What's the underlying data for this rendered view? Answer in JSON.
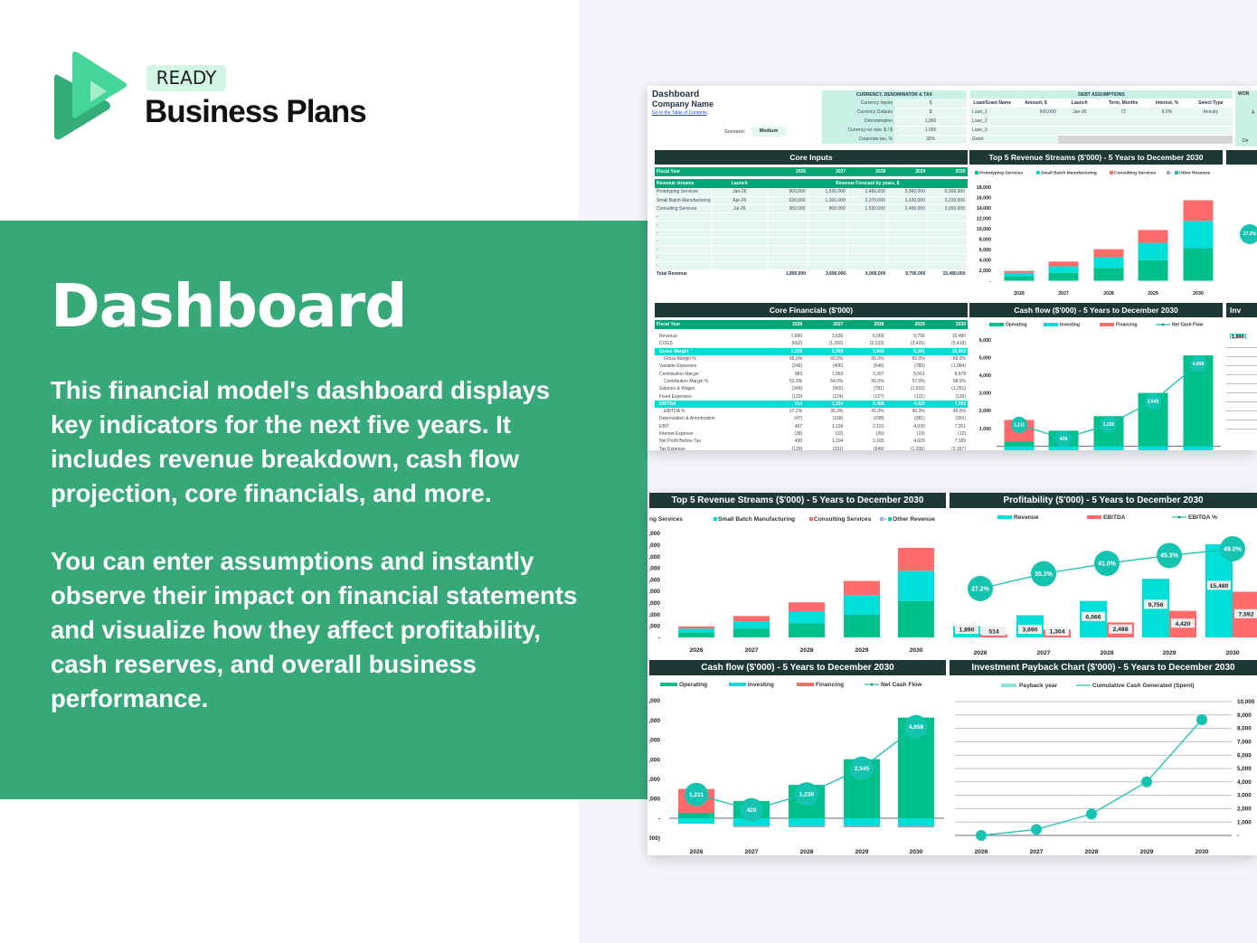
{
  "brand": {
    "badge": "READY",
    "name": "Business Plans"
  },
  "hero": {
    "title": "Dashboard",
    "paragraph1": "This financial model's dashboard displays key indicators for the next five years. It includes revenue breakdown, cash flow projection, core financials, and more.",
    "paragraph2": "You can enter assumptions and instantly observe their impact on financial statements and visualize how they affect profitability, cash reserves, and overall business performance."
  },
  "sheet": {
    "title": "Dashboard",
    "company": "Company Name",
    "toc_link": "Go to the Table of Contents",
    "scenario_label": "Scenario:",
    "scenario_value": "Medium",
    "currency": {
      "title": "CURRENCY, DENOMINATOR & TAX",
      "rows": [
        [
          "Currency Inputs",
          "$"
        ],
        [
          "Currency Outputs",
          "$"
        ],
        [
          "Denomination",
          "1,000"
        ],
        [
          "Currency ex rate, $ / $",
          "1.000"
        ],
        [
          "Corporate tax, %",
          "30%"
        ]
      ]
    },
    "debt": {
      "title": "DEBT ASSUMPTIONS",
      "headers": [
        "Loan/Grant Name",
        "Amount, $",
        "Launch",
        "Term, Months",
        "Interest, %",
        "Select Type"
      ],
      "rows": [
        [
          "Loan_1",
          "500,000",
          "Jan-26",
          "72",
          "8.0%",
          "Annuity"
        ],
        [
          "Loan_2",
          "",
          "",
          "",
          "",
          ""
        ],
        [
          "Loan_3",
          "",
          "",
          "",
          "",
          ""
        ],
        [
          "Grant",
          "",
          "",
          "",
          "",
          ""
        ]
      ]
    },
    "cut_panel": {
      "title": "WOR",
      "line1": "A",
      "line2": "De",
      "bubble": "27.2%",
      "label": "1,890",
      "year": "2026",
      "title2": "Inv"
    },
    "core_inputs": {
      "title": "Core Inputs",
      "fiscal_label": "Fiscal Year",
      "years": [
        "2026",
        "2027",
        "2028",
        "2029",
        "2030"
      ],
      "streams_header": "Revenue streams",
      "launch_header": "Launch",
      "forecast_header": "Revenue Forecast by years, $",
      "rows": [
        [
          "Prototyping Services",
          "Jan-26",
          "900,000",
          "1,530,000",
          "2,466,000",
          "3,960,000",
          "6,300,000"
        ],
        [
          "Small Batch Manufacturing",
          "Apr-26",
          "630,000",
          "1,260,000",
          "2,070,000",
          "3,330,000",
          "5,220,000"
        ],
        [
          "Consulting Services",
          "Jul-26",
          "360,000",
          "900,000",
          "1,530,000",
          "2,466,000",
          "3,960,000"
        ],
        [
          "-",
          "",
          "",
          "",
          "",
          "",
          ""
        ],
        [
          "-",
          "",
          "",
          "",
          "",
          "",
          ""
        ],
        [
          "-",
          "",
          "",
          "",
          "",
          "",
          ""
        ],
        [
          "-",
          "",
          "",
          "",
          "",
          "",
          ""
        ],
        [
          "-",
          "",
          "",
          "",
          "",
          "",
          ""
        ],
        [
          "-",
          "",
          "",
          "",
          "",
          "",
          ""
        ],
        [
          "-",
          "",
          "",
          "",
          "",
          "",
          ""
        ]
      ],
      "total_label": "Total Revenue",
      "totals": [
        "1,890,000",
        "3,690,000",
        "6,066,000",
        "9,756,000",
        "15,480,000"
      ]
    },
    "core_financials": {
      "title": "Core Financials ($'000)",
      "fiscal_label": "Fiscal Year",
      "years": [
        "2026",
        "2027",
        "2028",
        "2029",
        "2030"
      ],
      "rows": [
        {
          "label": "Revenue",
          "v": [
            "1,890",
            "3,690",
            "6,066",
            "9,756",
            "15,480"
          ]
        },
        {
          "label": "COGS",
          "v": [
            "(662)",
            "(1,292)",
            "(2,123)",
            "(3,415)",
            "(5,418)"
          ]
        },
        {
          "label": "Gross Margin",
          "v": [
            "1,229",
            "2,399",
            "3,943",
            "6,341",
            "10,062"
          ],
          "highlight": true
        },
        {
          "label": "Gross Margin %",
          "v": [
            "65.0%",
            "65.0%",
            "65.0%",
            "65.0%",
            "65.0%"
          ],
          "indent": true
        },
        {
          "label": "Variable Expenses",
          "v": [
            "(246)",
            "(406)",
            "(546)",
            "(780)",
            "(1,084)"
          ]
        },
        {
          "label": "Contribution Margin",
          "v": [
            "983",
            "1,993",
            "3,397",
            "5,561",
            "8,978"
          ]
        },
        {
          "label": "Contribution Margin %",
          "v": [
            "52.0%",
            "54.0%",
            "56.0%",
            "57.0%",
            "58.0%"
          ],
          "indent": true
        },
        {
          "label": "Salaries & Wages",
          "v": [
            "(349)",
            "(565)",
            "(781)",
            "(1,010)",
            "(1,251)"
          ]
        },
        {
          "label": "Fixed Expenses",
          "v": [
            "(120)",
            "(124)",
            "(127)",
            "(131)",
            "(135)"
          ]
        },
        {
          "label": "EBITDA",
          "v": [
            "514",
            "1,304",
            "2,488",
            "4,420",
            "7,592"
          ],
          "highlight": true
        },
        {
          "label": "EBITDA %",
          "v": [
            "27.2%",
            "35.3%",
            "41.0%",
            "45.3%",
            "49.0%"
          ],
          "indent": true
        },
        {
          "label": "Depreciation & Amortization",
          "v": [
            "(47)",
            "(168)",
            "(298)",
            "(381)",
            "(391)"
          ]
        },
        {
          "label": "EBIT",
          "v": [
            "467",
            "1,136",
            "2,191",
            "4,039",
            "7,201"
          ]
        },
        {
          "label": "Interest Expense",
          "v": [
            "(38)",
            "(32)",
            "(26)",
            "(19)",
            "(12)"
          ]
        },
        {
          "label": "Net Profit Before Tax",
          "v": [
            "430",
            "1,104",
            "2,165",
            "4,020",
            "7,189"
          ]
        },
        {
          "label": "Tax Expense",
          "v": [
            "(129)",
            "(331)",
            "(649)",
            "(1,206)",
            "(2,157)"
          ]
        }
      ]
    }
  },
  "colors": {
    "green": "#00c08b",
    "cyan": "#00e0d8",
    "red": "#ff6b6b",
    "bubble": "#14c3b0",
    "header": "#1e3836",
    "band": "#37a978"
  },
  "chart_data": [
    {
      "id": "revenue",
      "type": "bar",
      "stacked": true,
      "title": "Top 5 Revenue Streams ($'000) - 5 Years to December 2030",
      "categories": [
        "2026",
        "2027",
        "2028",
        "2029",
        "2030"
      ],
      "legend": [
        "Prototyping Services",
        "Small Batch Manufacturing",
        "Consulting Services",
        "-",
        "Other Revenue"
      ],
      "series": [
        {
          "name": "Prototyping Services",
          "values": [
            900,
            1530,
            2466,
            3960,
            6300
          ],
          "color": "#00c08b"
        },
        {
          "name": "Small Batch Manufacturing",
          "values": [
            630,
            1260,
            2070,
            3330,
            5220
          ],
          "color": "#00e0d8"
        },
        {
          "name": "Consulting Services",
          "values": [
            360,
            900,
            1530,
            2466,
            3960
          ],
          "color": "#ff6b6b"
        }
      ],
      "ylim": [
        0,
        18000
      ],
      "y_ticks": [
        "18,000",
        "16,000",
        "14,000",
        "12,000",
        "10,000",
        "8,000",
        "6,000",
        "4,000",
        "2,000",
        "-"
      ],
      "legend_position": "top"
    },
    {
      "id": "cashflow",
      "type": "bar",
      "stacked": true,
      "title": "Cash flow ($'000) - 5 Years to December 2030",
      "categories": [
        "2026",
        "2027",
        "2028",
        "2029",
        "2030"
      ],
      "legend": [
        "Operating",
        "Investing",
        "Financing",
        "Net Cash Flow"
      ],
      "series": [
        {
          "name": "Operating",
          "values": [
            280,
            880,
            1700,
            3010,
            5130
          ],
          "color": "#00c08b"
        },
        {
          "name": "Investing",
          "values": [
            -280,
            -420,
            -430,
            -430,
            -430
          ],
          "color": "#00e0d8"
        },
        {
          "name": "Financing",
          "values": [
            1210,
            -30,
            -30,
            -30,
            -40
          ],
          "color": "#ff6b6b"
        }
      ],
      "line": {
        "name": "Net Cash Flow",
        "values": [
          1211,
          429,
          1236,
          2545,
          4658
        ],
        "labels": [
          "1,211",
          "429",
          "1,236",
          "2,545",
          "4,658"
        ]
      },
      "ylim": [
        -1000,
        6000
      ],
      "y_ticks": [
        "6,000",
        "5,000",
        "4,000",
        "3,000",
        "2,000",
        "1,000",
        "-",
        "(1,000)"
      ],
      "legend_position": "top"
    },
    {
      "id": "profitability",
      "type": "bar",
      "title": "Profitability ($'000) - 5 Years to December 2030",
      "categories": [
        "2026",
        "2027",
        "2028",
        "2029",
        "2030"
      ],
      "legend": [
        "Revenue",
        "EBITDA",
        "EBITDA %"
      ],
      "series": [
        {
          "name": "Revenue",
          "values": [
            1890,
            3690,
            6066,
            9756,
            15480
          ],
          "labels": [
            "1,890",
            "3,690",
            "6,066",
            "9,756",
            "15,480"
          ],
          "color": "#00e0d8"
        },
        {
          "name": "EBITDA",
          "values": [
            514,
            1304,
            2488,
            4420,
            7592
          ],
          "labels": [
            "514",
            "1,304",
            "2,488",
            "4,420",
            "7,592"
          ],
          "color": "#ff6b6b"
        }
      ],
      "line": {
        "name": "EBITDA %",
        "values": [
          27.2,
          35.3,
          41.0,
          45.3,
          49.0
        ],
        "labels": [
          "27.2%",
          "35.3%",
          "41.0%",
          "45.3%",
          "49.0%"
        ]
      },
      "legend_position": "top"
    },
    {
      "id": "payback",
      "type": "line",
      "title": "Investment Payback Chart ($'000) - 5 Years to December 2030",
      "categories": [
        "2026",
        "2027",
        "2028",
        "2029",
        "2030"
      ],
      "legend": [
        "Payback year",
        "Cumulative Cash Generated (Spent)"
      ],
      "series": [
        {
          "name": "Cumulative Cash Generated (Spent)",
          "values": [
            0,
            450,
            1600,
            4000,
            8650
          ],
          "color": "#14c3b0"
        }
      ],
      "ylim": [
        0,
        10000
      ],
      "y_ticks": [
        "10,000",
        "9,000",
        "8,000",
        "7,000",
        "6,000",
        "5,000",
        "4,000",
        "3,000",
        "2,000",
        "1,000",
        "-"
      ],
      "grid": true,
      "legend_position": "top"
    }
  ]
}
